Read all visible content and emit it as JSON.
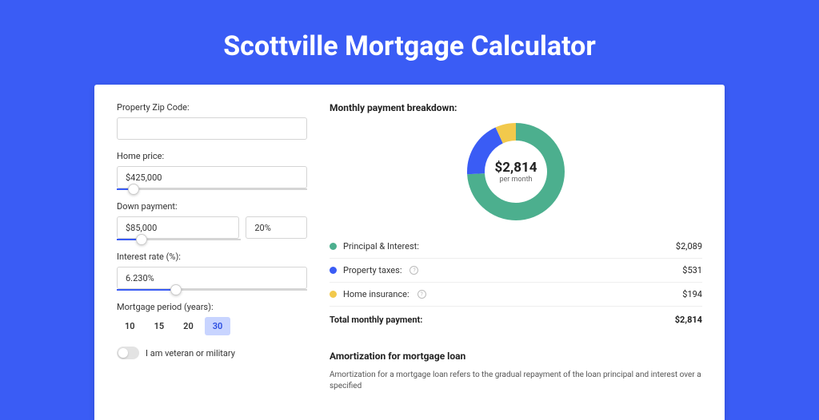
{
  "page_title": "Scottville Mortgage Calculator",
  "colors": {
    "bg": "#3a5cf5",
    "principal": "#4caf8e",
    "taxes": "#3a5cf5",
    "insurance": "#f2c94c"
  },
  "form": {
    "zip": {
      "label": "Property Zip Code:",
      "value": ""
    },
    "home_price": {
      "label": "Home price:",
      "value": "$425,000",
      "slider_pct": 9
    },
    "down_payment": {
      "label": "Down payment:",
      "value": "$85,000",
      "pct_value": "20%",
      "slider_pct": 20
    },
    "interest": {
      "label": "Interest rate (%):",
      "value": "6.230%",
      "slider_pct": 31
    },
    "period": {
      "label": "Mortgage period (years):",
      "options": [
        "10",
        "15",
        "20",
        "30"
      ],
      "active": "30"
    },
    "veteran": {
      "label": "I am veteran or military",
      "checked": false
    }
  },
  "breakdown": {
    "title": "Monthly payment breakdown:",
    "center_value": "$2,814",
    "center_sub": "per month",
    "items": [
      {
        "label": "Principal & Interest:",
        "value": "$2,089",
        "color": "#4caf8e",
        "info": false,
        "pct": 74
      },
      {
        "label": "Property taxes:",
        "value": "$531",
        "color": "#3a5cf5",
        "info": true,
        "pct": 19
      },
      {
        "label": "Home insurance:",
        "value": "$194",
        "color": "#f2c94c",
        "info": true,
        "pct": 7
      }
    ],
    "total_label": "Total monthly payment:",
    "total_value": "$2,814"
  },
  "amort": {
    "title": "Amortization for mortgage loan",
    "text": "Amortization for a mortgage loan refers to the gradual repayment of the loan principal and interest over a specified"
  },
  "donut": {
    "stroke_width": 22,
    "radius": 50,
    "circumference": 314.16
  }
}
